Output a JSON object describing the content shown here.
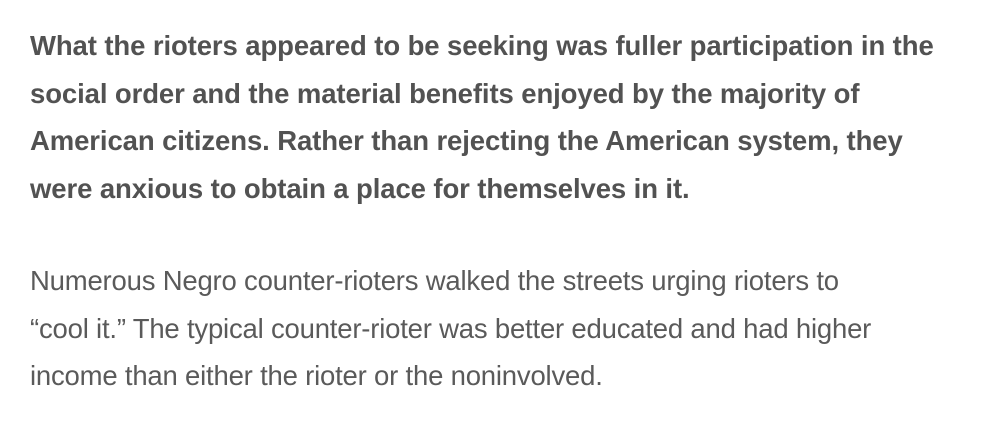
{
  "article": {
    "paragraph_bold_lines": [
      "What the rioters appeared to be seeking was fuller participation in the",
      "social order and the material benefits enjoyed by the majority of",
      "American citizens. Rather than rejecting the American system, they",
      "were anxious to obtain a place for themselves in it."
    ],
    "paragraph_regular_lines": [
      "Numerous Negro counter-rioters walked the streets urging rioters to",
      "“cool it.” The typical counter-rioter was better educated and had higher",
      "income than either the rioter or the noninvolved."
    ]
  }
}
